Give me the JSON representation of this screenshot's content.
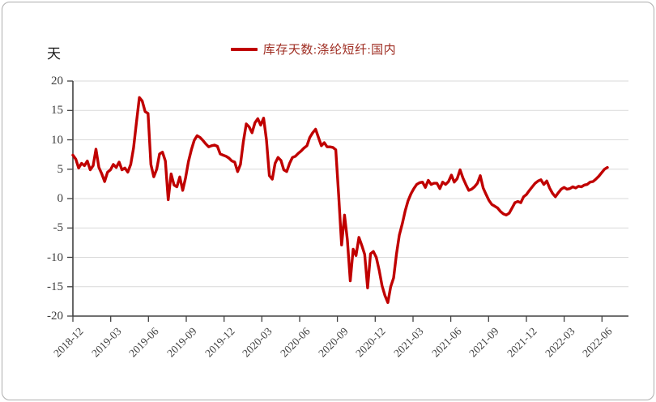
{
  "window": {
    "background": "#FFFFFF",
    "border_color": "#ADADAD"
  },
  "chart_data": {
    "type": "line",
    "title": "",
    "unit_label": "天",
    "grid": true,
    "legend_position": "top-center",
    "legend": [
      {
        "label": "库存天数:涤纶短纤:国内",
        "color": "#C00000"
      }
    ],
    "ylim": [
      -20,
      20
    ],
    "y_ticks": [
      20,
      15,
      10,
      5,
      0,
      -5,
      -10,
      -15,
      -20
    ],
    "x_tick_labels": [
      "2018-12",
      "2019-03",
      "2019-06",
      "2019-09",
      "2019-12",
      "2020-03",
      "2020-06",
      "2020-09",
      "2020-12",
      "2021-03",
      "2021-06",
      "2021-09",
      "2021-12",
      "2022-03",
      "2022-06"
    ],
    "series": [
      {
        "name": "库存天数:涤纶短纤:国内",
        "color": "#C00000",
        "start_date": "2018-11-30",
        "interval_days": 7,
        "values": [
          7.4,
          6.7,
          5.2,
          6.0,
          5.6,
          6.4,
          4.9,
          5.6,
          8.4,
          5.3,
          4.2,
          2.9,
          4.5,
          4.9,
          5.8,
          5.3,
          6.2,
          4.9,
          5.2,
          4.5,
          5.8,
          8.6,
          13.0,
          17.2,
          16.6,
          14.8,
          14.5,
          5.8,
          3.7,
          5.0,
          7.6,
          7.9,
          6.4,
          -0.2,
          4.2,
          2.3,
          2.0,
          3.7,
          1.4,
          3.5,
          6.3,
          8.3,
          9.9,
          10.7,
          10.4,
          9.9,
          9.3,
          8.8,
          9.0,
          9.1,
          8.9,
          7.6,
          7.4,
          7.2,
          6.9,
          6.4,
          6.2,
          4.6,
          5.8,
          9.7,
          12.7,
          12.2,
          11.2,
          12.9,
          13.6,
          12.5,
          13.7,
          10.0,
          3.9,
          3.3,
          6.0,
          7.0,
          6.5,
          4.9,
          4.6,
          6.0,
          7.0,
          7.2,
          7.7,
          8.1,
          8.6,
          9.0,
          10.4,
          11.2,
          11.8,
          10.4,
          9.0,
          9.5,
          8.8,
          8.8,
          8.7,
          8.3,
          0.5,
          -7.9,
          -2.8,
          -7.0,
          -14.0,
          -8.6,
          -9.7,
          -6.6,
          -8.0,
          -9.5,
          -15.2,
          -9.4,
          -9.0,
          -10.0,
          -12.2,
          -14.8,
          -16.5,
          -17.7,
          -15.0,
          -13.5,
          -9.4,
          -6.2,
          -4.3,
          -2.1,
          -0.4,
          0.8,
          1.7,
          2.4,
          2.7,
          2.8,
          1.9,
          3.1,
          2.4,
          2.6,
          2.6,
          1.7,
          2.8,
          2.4,
          2.9,
          4.0,
          2.8,
          3.4,
          4.9,
          3.5,
          2.4,
          1.4,
          1.6,
          2.0,
          2.6,
          3.9,
          1.8,
          0.7,
          -0.3,
          -1.0,
          -1.3,
          -1.6,
          -2.2,
          -2.6,
          -2.8,
          -2.5,
          -1.6,
          -0.7,
          -0.5,
          -0.7,
          0.3,
          0.7,
          1.4,
          2.0,
          2.6,
          3.0,
          3.2,
          2.4,
          3.0,
          1.8,
          0.9,
          0.3,
          1.0,
          1.6,
          1.9,
          1.6,
          1.7,
          2.0,
          1.8,
          2.1,
          2.0,
          2.3,
          2.4,
          2.8,
          2.9,
          3.3,
          3.8,
          4.4,
          5.0,
          5.3
        ]
      }
    ]
  }
}
